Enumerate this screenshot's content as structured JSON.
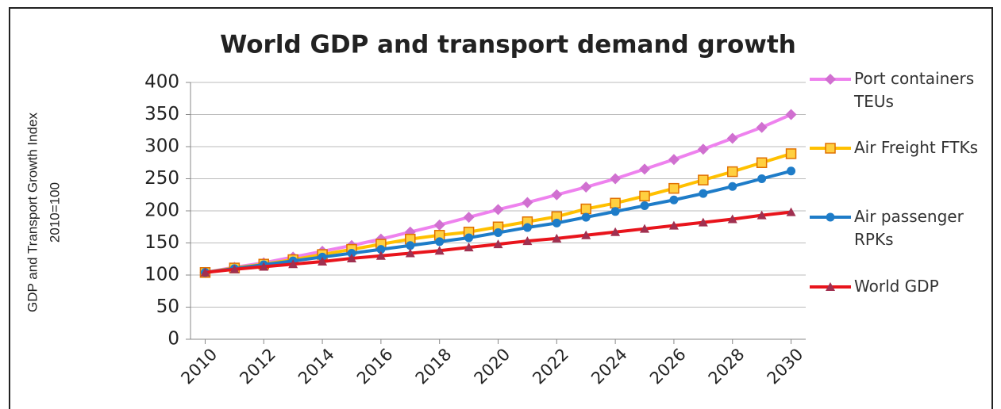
{
  "chart_data": {
    "type": "line",
    "title": "World GDP and transport demand growth",
    "ylabel": [
      "GDP and Transport Growth Index",
      "2010=100"
    ],
    "x": [
      2010,
      2011,
      2012,
      2013,
      2014,
      2015,
      2016,
      2017,
      2018,
      2019,
      2020,
      2021,
      2022,
      2023,
      2024,
      2025,
      2026,
      2027,
      2028,
      2029,
      2030
    ],
    "xlim": [
      2009.5,
      2030.5
    ],
    "xticks": [
      2010,
      2012,
      2014,
      2016,
      2018,
      2020,
      2022,
      2024,
      2026,
      2028,
      2030
    ],
    "ylim": [
      0,
      400
    ],
    "yticks": [
      0,
      50,
      100,
      150,
      200,
      250,
      300,
      350,
      400
    ],
    "grid": true,
    "series": [
      {
        "name": "Port containers TEUs",
        "color": "#ee82ee",
        "marker": "diamond",
        "marker_color": "#d070d0",
        "values": [
          104,
          112,
          119,
          128,
          137,
          146,
          156,
          167,
          178,
          190,
          202,
          213,
          225,
          237,
          250,
          265,
          280,
          296,
          313,
          330,
          350
        ]
      },
      {
        "name": "Air Freight FTKs",
        "color": "#ffc000",
        "marker": "square",
        "marker_color": "#e07000",
        "values": [
          104,
          111,
          117,
          124,
          132,
          140,
          148,
          156,
          162,
          167,
          175,
          183,
          191,
          203,
          212,
          223,
          235,
          248,
          261,
          275,
          289
        ]
      },
      {
        "name": "Air passenger RPKs",
        "color": "#1e7cc8",
        "marker": "circle",
        "marker_color": "#1e7cc8",
        "values": [
          104,
          110,
          116,
          122,
          128,
          134,
          140,
          146,
          152,
          158,
          166,
          174,
          181,
          190,
          199,
          208,
          217,
          227,
          238,
          250,
          262
        ]
      },
      {
        "name": "World GDP",
        "color": "#e8141c",
        "marker": "triangle",
        "marker_color": "#a03050",
        "values": [
          104,
          109,
          113,
          117,
          121,
          126,
          130,
          134,
          138,
          143,
          148,
          153,
          157,
          162,
          167,
          172,
          177,
          182,
          187,
          193,
          198
        ]
      }
    ]
  }
}
